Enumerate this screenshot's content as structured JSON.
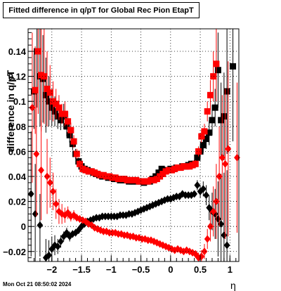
{
  "title": "Fitted difference in q/pT for Global Rec Pion EtapT",
  "timestamp": "Mon Oct 21 08:50:02 2024",
  "chart_data": {
    "type": "scatter",
    "title": "Fitted difference in q/pT for Global Rec Pion EtapT",
    "xlabel": "η",
    "ylabel": "difference in q/pT",
    "xlim": [
      -2.4,
      1.15
    ],
    "ylim": [
      -0.028,
      0.158
    ],
    "x_ticks": [
      -2,
      -1.5,
      -1,
      -0.5,
      0,
      0.5,
      1
    ],
    "x_tick_labels": [
      "−2",
      "−1.5",
      "−1",
      "−0.5",
      "0",
      "0.5",
      "1"
    ],
    "y_ticks": [
      -0.02,
      0,
      0.02,
      0.04,
      0.06,
      0.08,
      0.1,
      0.12,
      0.14
    ],
    "y_tick_labels": [
      "−0.02",
      "0",
      "0.02",
      "0.04",
      "0.06",
      "0.08",
      "0.1",
      "0.12",
      "0.14"
    ],
    "colors": {
      "black": "#000000",
      "red": "#ff0000"
    },
    "series": [
      {
        "marker": "square",
        "color": "#000000",
        "x": [
          -2.3,
          -2.25,
          -2.2,
          -2.15,
          -2.1,
          -2.05,
          -2.0,
          -1.95,
          -1.9,
          -1.85,
          -1.8,
          -1.75,
          -1.7,
          -1.65,
          -1.6,
          -1.55,
          -1.5,
          -1.45,
          -1.4,
          -1.35,
          -1.3,
          -1.25,
          -1.2,
          -1.15,
          -1.1,
          -1.05,
          -1.0,
          -0.95,
          -0.9,
          -0.85,
          -0.8,
          -0.75,
          -0.7,
          -0.65,
          -0.6,
          -0.55,
          -0.5,
          -0.45,
          -0.4,
          -0.35,
          -0.3,
          -0.25,
          -0.2,
          -0.15,
          -0.1,
          -0.05,
          0.0,
          0.05,
          0.1,
          0.15,
          0.2,
          0.25,
          0.3,
          0.35,
          0.4,
          0.45,
          0.5,
          0.55,
          0.6,
          0.65,
          0.7,
          0.75,
          0.8,
          0.85,
          0.9,
          0.95,
          1.05
        ],
        "y": [
          0.108,
          0.14,
          0.12,
          0.118,
          0.105,
          0.1,
          0.095,
          0.092,
          0.088,
          0.085,
          0.088,
          0.08,
          0.073,
          0.066,
          0.058,
          0.052,
          0.048,
          0.046,
          0.045,
          0.044,
          0.043,
          0.042,
          0.041,
          0.04,
          0.04,
          0.039,
          0.039,
          0.038,
          0.038,
          0.037,
          0.037,
          0.037,
          0.036,
          0.036,
          0.036,
          0.036,
          0.036,
          0.035,
          0.036,
          0.036,
          0.038,
          0.04,
          0.043,
          0.046,
          0.045,
          0.045,
          0.046,
          0.046,
          0.047,
          0.047,
          0.048,
          0.048,
          0.049,
          0.05,
          0.05,
          0.055,
          0.06,
          0.065,
          0.07,
          0.075,
          0.085,
          0.095,
          0.125,
          0.085,
          0.088,
          0.108,
          0.128
        ],
        "yerr": [
          0.03,
          0.045,
          0.04,
          0.035,
          0.03,
          0.02,
          0.015,
          0.012,
          0.01,
          0.008,
          0.01,
          0.008,
          0.006,
          0.005,
          0.004,
          0.003,
          0.003,
          0.002,
          0.002,
          0.002,
          0.002,
          0.002,
          0.002,
          0.002,
          0.002,
          0.002,
          0.002,
          0.002,
          0.002,
          0.002,
          0.002,
          0.002,
          0.002,
          0.002,
          0.002,
          0.002,
          0.002,
          0.002,
          0.002,
          0.002,
          0.002,
          0.002,
          0.002,
          0.002,
          0.002,
          0.002,
          0.002,
          0.002,
          0.002,
          0.002,
          0.002,
          0.002,
          0.002,
          0.002,
          0.003,
          0.004,
          0.005,
          0.006,
          0.008,
          0.01,
          0.012,
          0.015,
          0.03,
          0.03,
          0.035,
          0.05,
          0.06
        ]
      },
      {
        "marker": "square",
        "color": "#ff0000",
        "x": [
          -2.28,
          -2.23,
          -2.18,
          -2.13,
          -2.08,
          -2.03,
          -1.98,
          -1.93,
          -1.88,
          -1.83,
          -1.78,
          -1.73,
          -1.68,
          -1.63,
          -1.58,
          -1.53,
          -1.48,
          -1.43,
          -1.38,
          -1.33,
          -1.28,
          -1.23,
          -1.18,
          -1.13,
          -1.08,
          -1.03,
          -0.98,
          -0.93,
          -0.88,
          -0.83,
          -0.78,
          -0.73,
          -0.68,
          -0.63,
          -0.58,
          -0.53,
          -0.48,
          -0.43,
          -0.38,
          -0.33,
          -0.28,
          -0.23,
          -0.18,
          -0.13,
          -0.08,
          -0.03,
          0.02,
          0.07,
          0.12,
          0.17,
          0.22,
          0.27,
          0.32,
          0.37,
          0.42,
          0.47,
          0.52,
          0.57,
          0.62,
          0.67,
          0.72,
          0.77
        ],
        "y": [
          0.109,
          0.14,
          0.121,
          0.12,
          0.11,
          0.107,
          0.1,
          0.098,
          0.095,
          0.09,
          0.09,
          0.084,
          0.077,
          0.068,
          0.058,
          0.05,
          0.046,
          0.045,
          0.044,
          0.044,
          0.043,
          0.042,
          0.041,
          0.041,
          0.04,
          0.04,
          0.039,
          0.039,
          0.038,
          0.038,
          0.038,
          0.037,
          0.037,
          0.037,
          0.037,
          0.036,
          0.036,
          0.036,
          0.036,
          0.037,
          0.037,
          0.038,
          0.04,
          0.042,
          0.044,
          0.045,
          0.045,
          0.046,
          0.047,
          0.047,
          0.048,
          0.048,
          0.048,
          0.049,
          0.05,
          0.06,
          0.072,
          0.076,
          0.092,
          0.105,
          0.12,
          0.13
        ],
        "yerr": [
          0.035,
          0.05,
          0.045,
          0.038,
          0.03,
          0.022,
          0.016,
          0.012,
          0.01,
          0.008,
          0.01,
          0.008,
          0.006,
          0.005,
          0.004,
          0.003,
          0.003,
          0.002,
          0.002,
          0.002,
          0.002,
          0.002,
          0.002,
          0.002,
          0.002,
          0.002,
          0.002,
          0.002,
          0.002,
          0.002,
          0.002,
          0.002,
          0.002,
          0.002,
          0.002,
          0.002,
          0.002,
          0.002,
          0.002,
          0.002,
          0.002,
          0.002,
          0.002,
          0.002,
          0.002,
          0.002,
          0.002,
          0.002,
          0.002,
          0.002,
          0.002,
          0.002,
          0.002,
          0.002,
          0.003,
          0.004,
          0.005,
          0.006,
          0.008,
          0.012,
          0.02,
          0.03
        ]
      },
      {
        "marker": "diamond",
        "color": "#000000",
        "x": [
          -2.35,
          -2.28,
          -2.2,
          -2.1,
          -2.05,
          -2.0,
          -1.95,
          -1.9,
          -1.85,
          -1.8,
          -1.75,
          -1.7,
          -1.65,
          -1.6,
          -1.55,
          -1.5,
          -1.45,
          -1.4,
          -1.35,
          -1.3,
          -1.25,
          -1.2,
          -1.15,
          -1.1,
          -1.05,
          -1.0,
          -0.95,
          -0.9,
          -0.85,
          -0.8,
          -0.75,
          -0.7,
          -0.65,
          -0.6,
          -0.55,
          -0.5,
          -0.45,
          -0.4,
          -0.35,
          -0.3,
          -0.25,
          -0.2,
          -0.15,
          -0.1,
          -0.05,
          0.0,
          0.05,
          0.1,
          0.15,
          0.2,
          0.25,
          0.3,
          0.35,
          0.4,
          0.45,
          0.5,
          0.55,
          0.6,
          0.65,
          0.7,
          0.75,
          0.8,
          0.85,
          0.9,
          0.95
        ],
        "y": [
          0.026,
          0.01,
          0.001,
          -0.025,
          -0.023,
          -0.018,
          -0.015,
          -0.016,
          -0.012,
          -0.008,
          -0.005,
          -0.008,
          -0.006,
          -0.005,
          -0.003,
          0.0,
          0.002,
          0.004,
          0.005,
          0.006,
          0.007,
          0.007,
          0.008,
          0.008,
          0.008,
          0.008,
          0.008,
          0.008,
          0.009,
          0.009,
          0.009,
          0.01,
          0.01,
          0.011,
          0.012,
          0.013,
          0.014,
          0.015,
          0.016,
          0.017,
          0.018,
          0.019,
          0.02,
          0.021,
          0.022,
          0.022,
          0.023,
          0.024,
          0.024,
          0.026,
          0.025,
          0.025,
          0.025,
          0.026,
          0.033,
          0.028,
          0.03,
          0.025,
          0.015,
          0.012,
          0.01,
          0.006,
          0.002,
          -0.007,
          -0.015
        ],
        "yerr": [
          0.05,
          0.04,
          0.025,
          0.015,
          0.012,
          0.01,
          0.008,
          0.006,
          0.005,
          0.004,
          0.004,
          0.004,
          0.003,
          0.003,
          0.003,
          0.002,
          0.002,
          0.002,
          0.002,
          0.002,
          0.002,
          0.002,
          0.002,
          0.002,
          0.002,
          0.002,
          0.002,
          0.002,
          0.002,
          0.002,
          0.002,
          0.002,
          0.002,
          0.002,
          0.002,
          0.002,
          0.002,
          0.002,
          0.002,
          0.002,
          0.002,
          0.002,
          0.002,
          0.002,
          0.002,
          0.002,
          0.002,
          0.002,
          0.002,
          0.002,
          0.002,
          0.002,
          0.002,
          0.002,
          0.004,
          0.005,
          0.006,
          0.008,
          0.01,
          0.015,
          0.02,
          0.03,
          0.04,
          0.05,
          0.06
        ]
      },
      {
        "marker": "diamond",
        "color": "#ff0000",
        "x": [
          -2.33,
          -2.26,
          -2.18,
          -2.08,
          -2.03,
          -1.98,
          -1.93,
          -1.88,
          -1.83,
          -1.78,
          -1.73,
          -1.68,
          -1.63,
          -1.58,
          -1.53,
          -1.48,
          -1.43,
          -1.38,
          -1.33,
          -1.28,
          -1.23,
          -1.18,
          -1.13,
          -1.08,
          -1.03,
          -0.98,
          -0.93,
          -0.88,
          -0.83,
          -0.78,
          -0.73,
          -0.68,
          -0.63,
          -0.58,
          -0.53,
          -0.48,
          -0.43,
          -0.38,
          -0.33,
          -0.28,
          -0.23,
          -0.18,
          -0.13,
          -0.08,
          -0.03,
          0.02,
          0.07,
          0.12,
          0.17,
          0.22,
          0.27,
          0.32,
          0.37,
          0.42,
          0.47,
          0.52,
          0.57,
          0.62,
          0.67,
          0.72,
          0.77,
          0.82,
          0.87,
          0.92,
          0.97,
          1.12
        ],
        "y": [
          0.095,
          0.058,
          0.045,
          0.04,
          0.035,
          0.028,
          0.018,
          0.012,
          0.01,
          0.009,
          0.011,
          0.008,
          0.009,
          0.007,
          0.006,
          0.005,
          0.004,
          0.002,
          0.001,
          -0.001,
          -0.002,
          -0.003,
          -0.004,
          -0.004,
          -0.005,
          -0.005,
          -0.005,
          -0.006,
          -0.006,
          -0.007,
          -0.007,
          -0.008,
          -0.008,
          -0.009,
          -0.009,
          -0.01,
          -0.01,
          -0.011,
          -0.011,
          -0.012,
          -0.013,
          -0.014,
          -0.015,
          -0.016,
          -0.017,
          -0.018,
          -0.019,
          -0.018,
          -0.019,
          -0.02,
          -0.019,
          -0.02,
          -0.021,
          -0.022,
          -0.025,
          -0.024,
          -0.02,
          -0.01,
          0.0,
          0.012,
          0.02,
          0.04,
          0.055,
          0.05,
          0.062,
          0.055
        ],
        "yerr": [
          0.06,
          0.05,
          0.04,
          0.03,
          0.02,
          0.015,
          0.012,
          0.01,
          0.008,
          0.006,
          0.005,
          0.004,
          0.004,
          0.003,
          0.003,
          0.002,
          0.002,
          0.002,
          0.002,
          0.002,
          0.002,
          0.002,
          0.002,
          0.002,
          0.002,
          0.002,
          0.002,
          0.002,
          0.002,
          0.002,
          0.002,
          0.002,
          0.002,
          0.002,
          0.002,
          0.002,
          0.002,
          0.002,
          0.002,
          0.002,
          0.002,
          0.002,
          0.002,
          0.002,
          0.002,
          0.002,
          0.002,
          0.002,
          0.002,
          0.002,
          0.002,
          0.002,
          0.002,
          0.003,
          0.004,
          0.005,
          0.006,
          0.008,
          0.012,
          0.02,
          0.03,
          0.04,
          0.05,
          0.06,
          0.07,
          0.06
        ]
      }
    ]
  }
}
